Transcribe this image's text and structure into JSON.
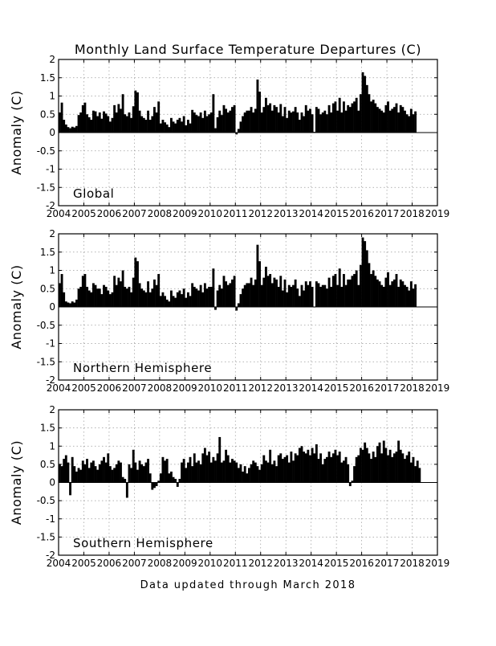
{
  "figure": {
    "title": "Monthly Land Surface Temperature Departures (C)",
    "footer": "Data updated through March 2018"
  },
  "chart_data": [
    {
      "type": "bar",
      "panel_label": "Global",
      "ylabel": "Anomaly (C)",
      "xlim": [
        2004,
        2019
      ],
      "ylim": [
        -2,
        2
      ],
      "grid": true,
      "x_ticks": [
        "2004",
        "2005",
        "2006",
        "2007",
        "2008",
        "2009",
        "2010",
        "2011",
        "2012",
        "2013",
        "2014",
        "2015",
        "2016",
        "2017",
        "2018",
        "2019"
      ],
      "y_ticks": [
        "-2",
        "-1.5",
        "-1",
        "-0.5",
        "0",
        "0.5",
        "1",
        "1.5",
        "2"
      ],
      "bar_color": "#000000",
      "start": "2004-01",
      "end": "2018-03",
      "values": [
        0.55,
        0.82,
        0.35,
        0.22,
        0.15,
        0.12,
        0.16,
        0.14,
        0.18,
        0.48,
        0.55,
        0.75,
        0.82,
        0.5,
        0.42,
        0.35,
        0.6,
        0.58,
        0.45,
        0.55,
        0.38,
        0.58,
        0.52,
        0.45,
        0.3,
        0.4,
        0.75,
        0.55,
        0.78,
        0.65,
        1.05,
        0.5,
        0.45,
        0.55,
        0.4,
        0.72,
        1.15,
        1.1,
        0.6,
        0.45,
        0.4,
        0.35,
        0.6,
        0.35,
        0.45,
        0.7,
        0.55,
        0.85,
        0.25,
        0.35,
        0.28,
        0.22,
        0.15,
        0.4,
        0.3,
        0.25,
        0.35,
        0.4,
        0.3,
        0.45,
        0.2,
        0.35,
        0.25,
        0.62,
        0.55,
        0.48,
        0.45,
        0.55,
        0.4,
        0.6,
        0.45,
        0.5,
        0.55,
        1.05,
        0.12,
        0.42,
        0.6,
        0.48,
        0.75,
        0.65,
        0.55,
        0.6,
        0.7,
        0.75,
        -0.05,
        0.1,
        0.3,
        0.45,
        0.55,
        0.6,
        0.6,
        0.7,
        0.55,
        0.65,
        1.45,
        1.12,
        0.55,
        0.7,
        0.95,
        0.75,
        0.8,
        0.6,
        0.75,
        0.7,
        0.55,
        0.78,
        0.45,
        0.7,
        0.4,
        0.6,
        0.55,
        0.58,
        0.7,
        0.55,
        0.35,
        0.55,
        0.45,
        0.75,
        0.6,
        0.65,
        0.5,
        0.02,
        0.7,
        0.65,
        0.5,
        0.55,
        0.6,
        0.5,
        0.75,
        0.55,
        0.8,
        0.85,
        0.6,
        0.95,
        0.55,
        0.85,
        0.6,
        0.75,
        0.7,
        0.8,
        0.85,
        0.95,
        0.6,
        1.05,
        1.65,
        1.55,
        1.3,
        1.05,
        0.85,
        0.9,
        0.8,
        0.7,
        0.65,
        0.6,
        0.55,
        0.75,
        0.85,
        0.6,
        0.65,
        0.7,
        0.8,
        0.55,
        0.75,
        0.7,
        0.6,
        0.5,
        0.45,
        0.65,
        0.5,
        0.58
      ]
    },
    {
      "type": "bar",
      "panel_label": "Northern Hemisphere",
      "ylabel": "Anomaly (C)",
      "xlim": [
        2004,
        2019
      ],
      "ylim": [
        -2,
        2
      ],
      "grid": true,
      "x_ticks": [
        "2004",
        "2005",
        "2006",
        "2007",
        "2008",
        "2009",
        "2010",
        "2011",
        "2012",
        "2013",
        "2014",
        "2015",
        "2016",
        "2017",
        "2018",
        "2019"
      ],
      "y_ticks": [
        "-2",
        "-1.5",
        "-1",
        "-0.5",
        "0",
        "0.5",
        "1",
        "1.5",
        "2"
      ],
      "bar_color": "#000000",
      "start": "2004-01",
      "end": "2018-03",
      "values": [
        0.65,
        0.9,
        0.4,
        0.15,
        0.12,
        0.1,
        0.15,
        0.12,
        0.2,
        0.5,
        0.55,
        0.85,
        0.9,
        0.55,
        0.45,
        0.4,
        0.65,
        0.6,
        0.5,
        0.5,
        0.35,
        0.6,
        0.55,
        0.45,
        0.35,
        0.4,
        0.85,
        0.6,
        0.8,
        0.7,
        1.0,
        0.55,
        0.5,
        0.55,
        0.4,
        0.8,
        1.35,
        1.25,
        0.65,
        0.5,
        0.45,
        0.4,
        0.7,
        0.4,
        0.5,
        0.75,
        0.6,
        0.9,
        0.3,
        0.4,
        0.3,
        0.2,
        0.15,
        0.45,
        0.3,
        0.25,
        0.4,
        0.45,
        0.35,
        0.5,
        0.25,
        0.4,
        0.3,
        0.65,
        0.55,
        0.5,
        0.45,
        0.6,
        0.4,
        0.65,
        0.5,
        0.55,
        0.55,
        1.05,
        -0.08,
        0.45,
        0.6,
        0.5,
        0.85,
        0.7,
        0.6,
        0.65,
        0.75,
        0.85,
        -0.1,
        0.1,
        0.35,
        0.5,
        0.6,
        0.65,
        0.65,
        0.8,
        0.6,
        0.75,
        1.7,
        1.25,
        0.6,
        0.8,
        1.1,
        0.85,
        0.9,
        0.65,
        0.8,
        0.75,
        0.55,
        0.85,
        0.45,
        0.75,
        0.4,
        0.6,
        0.55,
        0.6,
        0.75,
        0.5,
        0.3,
        0.6,
        0.45,
        0.7,
        0.6,
        0.7,
        0.55,
        0.0,
        0.7,
        0.65,
        0.55,
        0.6,
        0.6,
        0.5,
        0.8,
        0.55,
        0.85,
        0.9,
        0.6,
        1.05,
        0.55,
        0.9,
        0.6,
        0.75,
        0.75,
        0.85,
        0.9,
        1.0,
        0.6,
        1.15,
        1.9,
        1.8,
        1.55,
        1.2,
        0.9,
        1.0,
        0.85,
        0.75,
        0.7,
        0.6,
        0.55,
        0.8,
        0.95,
        0.6,
        0.7,
        0.75,
        0.9,
        0.55,
        0.75,
        0.7,
        0.6,
        0.55,
        0.45,
        0.7,
        0.5,
        0.62
      ]
    },
    {
      "type": "bar",
      "panel_label": "Southern Hemisphere",
      "ylabel": "Anomaly (C)",
      "xlim": [
        2004,
        2019
      ],
      "ylim": [
        -2,
        2
      ],
      "grid": true,
      "x_ticks": [
        "2004",
        "2005",
        "2006",
        "2007",
        "2008",
        "2009",
        "2010",
        "2011",
        "2012",
        "2013",
        "2014",
        "2015",
        "2016",
        "2017",
        "2018",
        "2019"
      ],
      "y_ticks": [
        "-2",
        "-1.5",
        "-1",
        "-0.5",
        "0",
        "0.5",
        "1",
        "1.5",
        "2"
      ],
      "bar_color": "#000000",
      "start": "2004-01",
      "end": "2018-03",
      "values": [
        0.5,
        0.45,
        0.65,
        0.75,
        0.55,
        -0.35,
        0.7,
        0.45,
        0.3,
        0.4,
        0.35,
        0.6,
        0.5,
        0.65,
        0.4,
        0.55,
        0.6,
        0.45,
        0.35,
        0.5,
        0.6,
        0.7,
        0.55,
        0.8,
        0.45,
        0.35,
        0.4,
        0.5,
        0.6,
        0.55,
        0.15,
        0.1,
        -0.42,
        0.5,
        0.4,
        0.9,
        0.55,
        0.35,
        0.6,
        0.5,
        0.45,
        0.55,
        0.65,
        0.25,
        -0.2,
        -0.15,
        -0.1,
        0.05,
        0.25,
        0.7,
        0.6,
        0.65,
        0.25,
        0.3,
        0.15,
        0.1,
        -0.12,
        0.1,
        0.55,
        0.65,
        0.4,
        0.55,
        0.7,
        0.45,
        0.8,
        0.55,
        0.6,
        0.5,
        0.8,
        0.95,
        0.75,
        0.85,
        0.55,
        0.7,
        0.6,
        0.8,
        1.25,
        0.55,
        0.6,
        0.9,
        0.75,
        0.55,
        0.65,
        0.6,
        0.55,
        0.4,
        0.5,
        0.3,
        0.45,
        0.25,
        0.4,
        0.5,
        0.6,
        0.55,
        0.45,
        0.35,
        0.5,
        0.75,
        0.6,
        0.55,
        0.9,
        0.5,
        0.6,
        0.45,
        0.75,
        0.8,
        0.65,
        0.7,
        0.75,
        0.55,
        0.85,
        0.6,
        0.8,
        0.75,
        0.95,
        1.0,
        0.85,
        0.8,
        0.9,
        0.75,
        0.95,
        0.8,
        1.05,
        0.65,
        0.8,
        0.5,
        0.65,
        0.7,
        0.85,
        0.7,
        0.8,
        0.9,
        0.75,
        0.85,
        0.55,
        0.6,
        0.7,
        0.5,
        -0.1,
        0.05,
        0.45,
        0.7,
        0.75,
        0.95,
        0.9,
        1.1,
        0.95,
        0.8,
        0.65,
        0.85,
        0.7,
        1.0,
        1.1,
        0.8,
        1.15,
        0.95,
        0.75,
        0.9,
        0.7,
        0.8,
        0.85,
        1.15,
        0.9,
        0.8,
        0.65,
        0.75,
        0.85,
        0.55,
        0.7,
        0.45,
        0.6,
        0.4
      ]
    }
  ]
}
